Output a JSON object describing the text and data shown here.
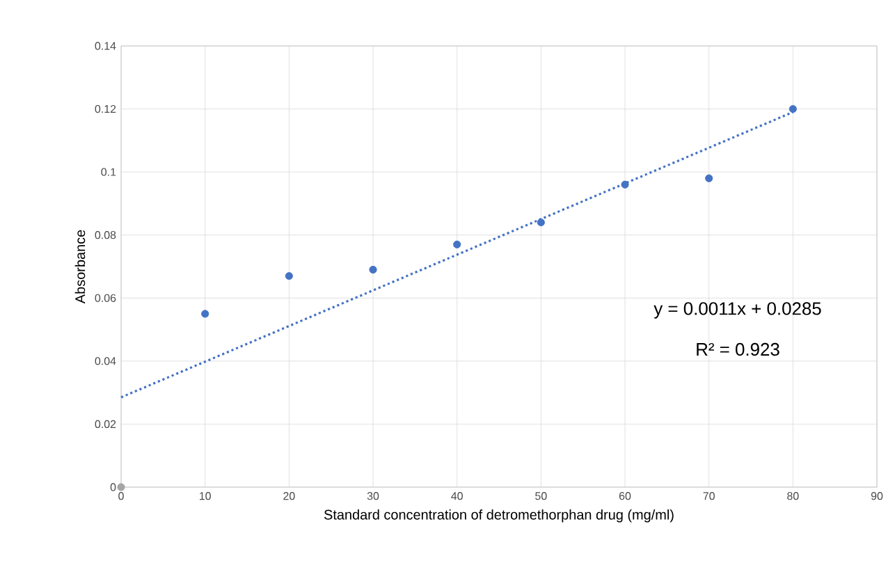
{
  "chart_data": {
    "type": "scatter",
    "xlabel": "Standard concentration of detromethorphan drug (mg/ml)",
    "ylabel": "Absorbance",
    "series": [
      {
        "x": [
          10,
          20,
          30,
          40,
          50,
          60,
          70,
          80
        ],
        "values": [
          0.055,
          0.067,
          0.069,
          0.077,
          0.084,
          0.096,
          0.098,
          0.12
        ],
        "color": "#4472c4"
      },
      {
        "x": [
          0
        ],
        "values": [
          0
        ],
        "color": "#a5a5a5"
      },
      {
        "type": "line",
        "x": [
          0,
          80
        ],
        "values": [
          0.0285,
          0.119
        ],
        "color": "#4472c4",
        "line_style": "dotted",
        "marker": "none"
      }
    ],
    "annotations": [
      "y = 0.0011x + 0.0285",
      "R² = 0.923"
    ],
    "xlim": [
      0,
      90
    ],
    "ylim": [
      0,
      0.14
    ],
    "xticks": [
      0,
      10,
      20,
      30,
      40,
      50,
      60,
      70,
      80,
      90
    ],
    "yticks": [
      0,
      0.02,
      0.04,
      0.06,
      0.08,
      0.1,
      0.12,
      0.14
    ],
    "grid": true,
    "marker": "circle"
  }
}
